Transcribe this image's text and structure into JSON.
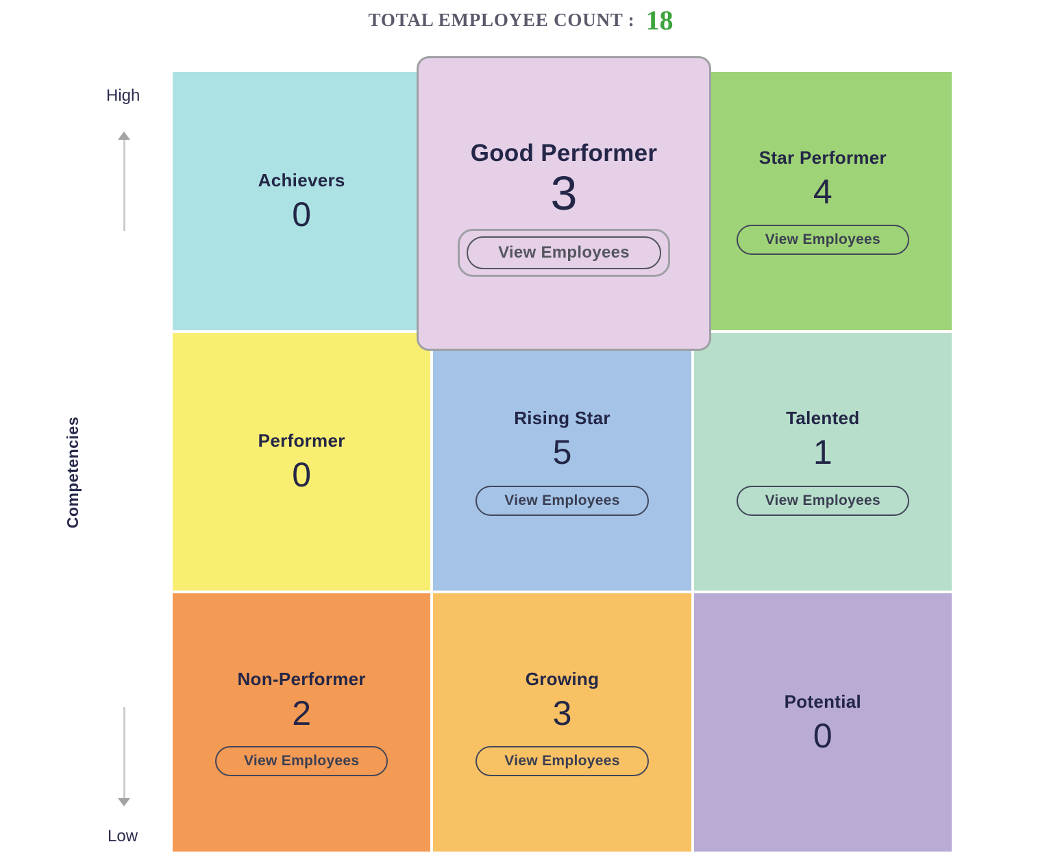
{
  "header": {
    "label": "TOTAL EMPLOYEE COUNT :",
    "count": "18"
  },
  "axis": {
    "title": "Competencies",
    "high_label": "High",
    "low_label": "Low"
  },
  "colors": {
    "header_label_text": "#5A5A6C",
    "header_count_text": "#3DA43D",
    "cell_text": "#232647",
    "highlight_border": "#9FA0A4",
    "button_outline": "#42465A"
  },
  "grid": {
    "cells": [
      {
        "id": "achievers",
        "title": "Achievers",
        "count": "0",
        "color": "#ADE2E4",
        "view_button": null
      },
      {
        "id": "good-performer",
        "title": "Good Performer",
        "count": "3",
        "color": "#E5D0E8",
        "view_button": "View Employees",
        "highlighted": true
      },
      {
        "id": "star-performer",
        "title": "Star Performer",
        "count": "4",
        "color": "#9FD377",
        "view_button": "View Employees"
      },
      {
        "id": "performer",
        "title": "Performer",
        "count": "0",
        "color": "#F8EE71",
        "view_button": null
      },
      {
        "id": "rising-star",
        "title": "Rising Star",
        "count": "5",
        "color": "#A4C3E7",
        "view_button": "View Employees"
      },
      {
        "id": "talented",
        "title": "Talented",
        "count": "1",
        "color": "#B7DECB",
        "view_button": "View Employees"
      },
      {
        "id": "non-performer",
        "title": "Non-Performer",
        "count": "2",
        "color": "#F39A55",
        "view_button": "View Employees"
      },
      {
        "id": "growing",
        "title": "Growing",
        "count": "3",
        "color": "#F8C164",
        "view_button": "View Employees"
      },
      {
        "id": "potential",
        "title": "Potential",
        "count": "0",
        "color": "#B9ABD4",
        "view_button": null
      }
    ]
  }
}
